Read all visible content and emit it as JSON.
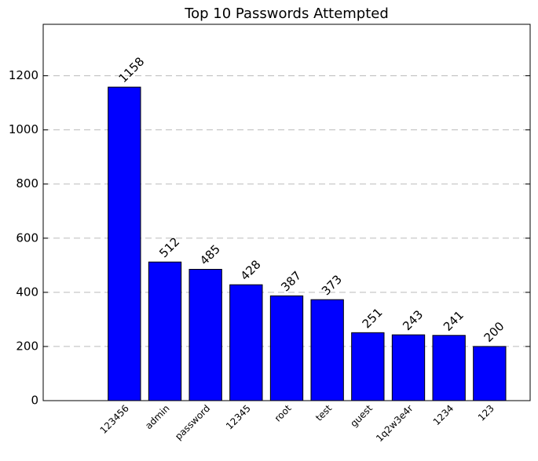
{
  "chart_data": {
    "type": "bar",
    "title": "Top 10 Passwords Attempted",
    "categories": [
      "123456",
      "admin",
      "password",
      "12345",
      "root",
      "test",
      "guest",
      "1q2w3e4r",
      "1234",
      "123"
    ],
    "values": [
      1158,
      512,
      485,
      428,
      387,
      373,
      251,
      243,
      241,
      200
    ],
    "color": "#0000ff",
    "ylim": [
      0,
      1390
    ],
    "yticks": [
      0,
      200,
      400,
      600,
      800,
      1000,
      1200
    ],
    "grid": true
  }
}
